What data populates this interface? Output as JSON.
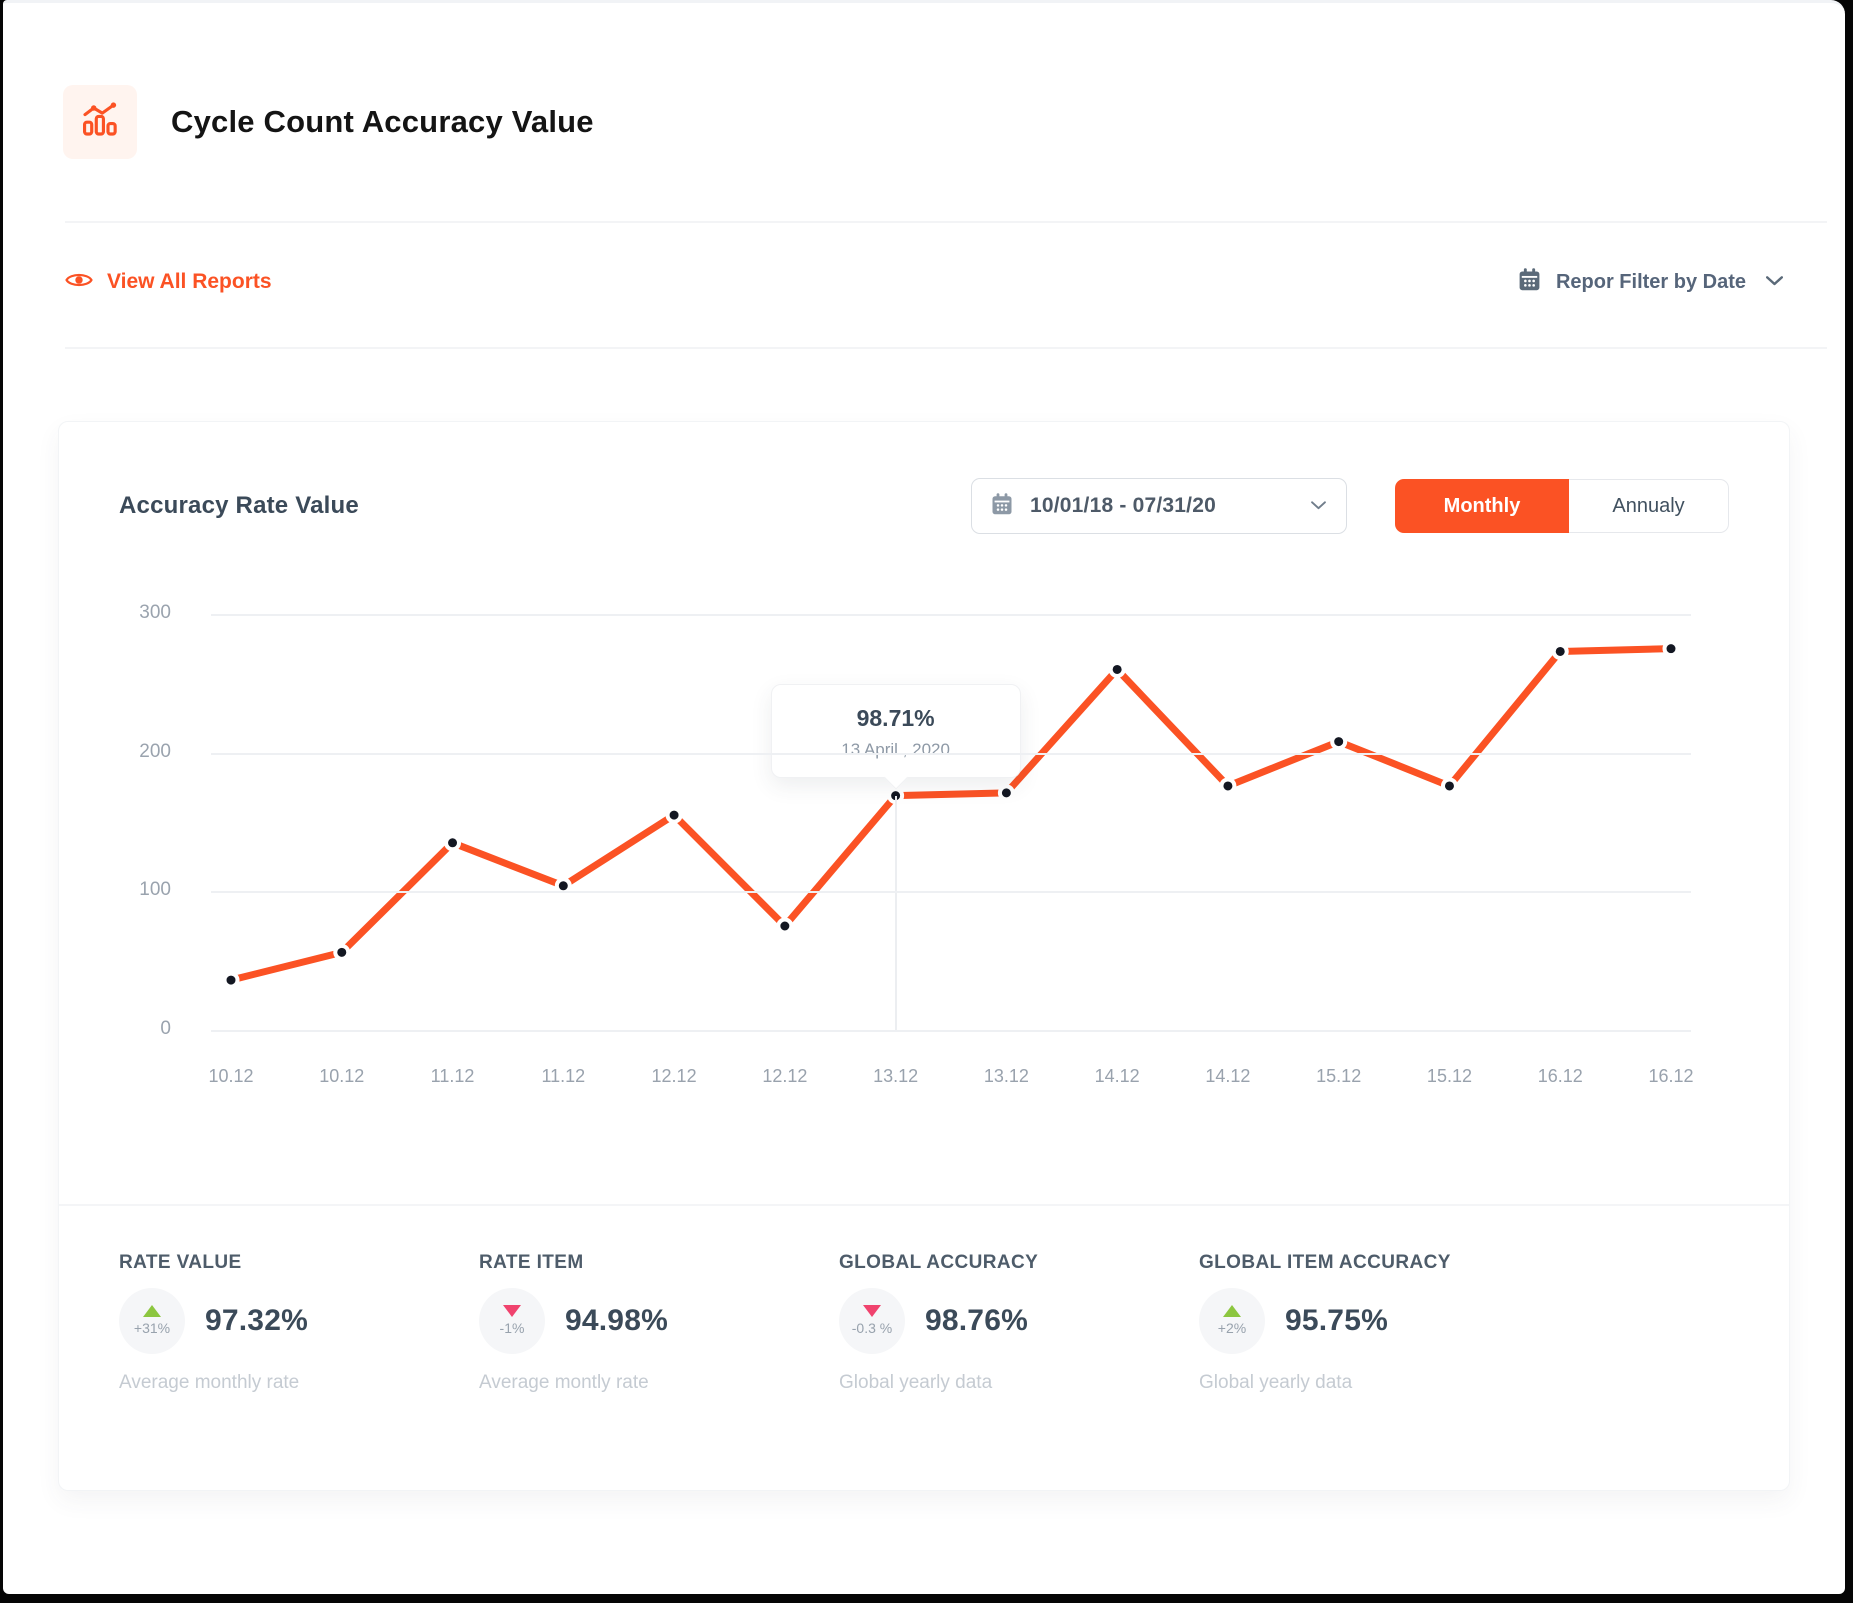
{
  "header": {
    "title": "Cycle Count Accuracy Value"
  },
  "toolbar": {
    "view_all_label": "View All Reports",
    "filter_label": "Repor Filter by Date"
  },
  "card": {
    "title": "Accuracy Rate Value",
    "date_range": "10/01/18 - 07/31/20",
    "toggle": {
      "monthly": "Monthly",
      "annually": "Annualy"
    }
  },
  "chart_data": {
    "type": "line",
    "title": "Accuracy Rate Value",
    "categories": [
      "10.12",
      "10.12",
      "11.12",
      "11.12",
      "12.12",
      "12.12",
      "13.12",
      "13.12",
      "14.12",
      "14.12",
      "15.12",
      "15.12",
      "16.12",
      "16.12"
    ],
    "values": [
      36,
      56,
      135,
      104,
      155,
      75,
      169,
      171,
      260,
      176,
      208,
      176,
      273,
      275
    ],
    "ylim": [
      0,
      300
    ],
    "yticks": [
      300,
      200,
      100,
      0
    ],
    "grid": true,
    "legend": "none",
    "line_color": "#FB5224",
    "point_color": "#131722",
    "tooltip": {
      "value": "98.71%",
      "date": "13 April , 2020",
      "point_index": 6
    }
  },
  "stats": [
    {
      "label": "RATE VALUE",
      "delta": "+31%",
      "direction": "up",
      "value": "97.32%",
      "sub": "Average monthly rate"
    },
    {
      "label": "RATE ITEM",
      "delta": "-1%",
      "direction": "down",
      "value": "94.98%",
      "sub": "Average montly rate"
    },
    {
      "label": "GLOBAL ACCURACY",
      "delta": "-0.3 %",
      "direction": "down",
      "value": "98.76%",
      "sub": "Global yearly data"
    },
    {
      "label": "GLOBAL ITEM ACCURACY",
      "delta": "+2%",
      "direction": "up",
      "value": "95.75%",
      "sub": "Global yearly data"
    }
  ],
  "colors": {
    "accent": "#FB5224",
    "up": "#8CC63F",
    "down": "#F0436E",
    "grid": "#eef0f3"
  }
}
